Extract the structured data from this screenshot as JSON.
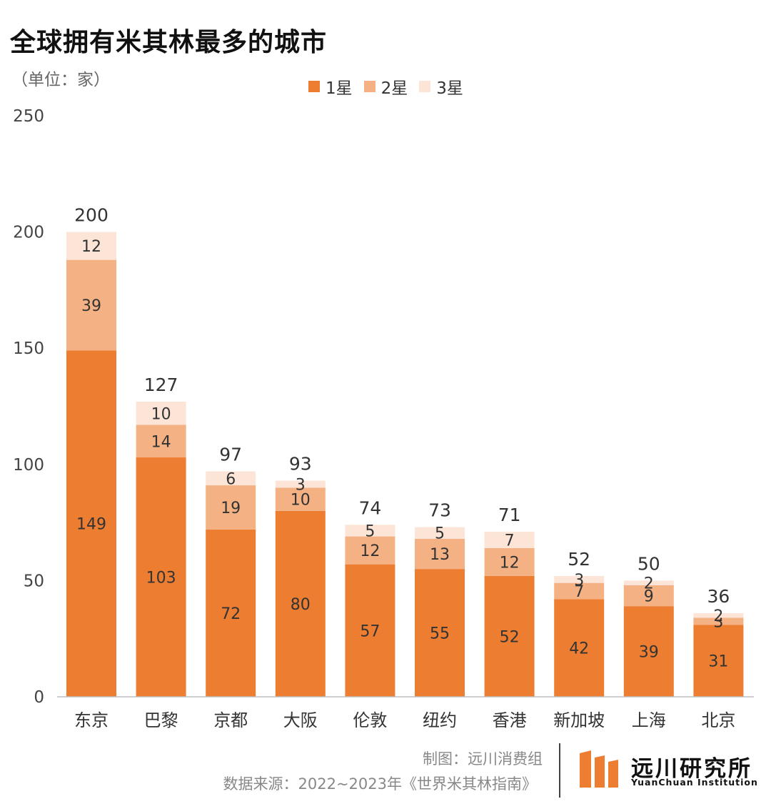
{
  "title": "全球拥有米其林最多的城市",
  "unit_label": "（单位：家）",
  "footer": {
    "credit": "制图：远川消费组",
    "source": "数据来源：2022~2023年《世界米其林指南》"
  },
  "logo": {
    "name": "远川研究所",
    "subtitle": "YuanChuan Institution"
  },
  "colors": {
    "star1": "#ED7D31",
    "star2": "#F4B183",
    "star3": "#FCE4D6",
    "axis": "#BFBFBF",
    "text": "#333333"
  },
  "chart_data": {
    "type": "bar",
    "stacked": true,
    "categories": [
      "东京",
      "巴黎",
      "京都",
      "大阪",
      "伦敦",
      "纽约",
      "香港",
      "新加坡",
      "上海",
      "北京"
    ],
    "series": [
      {
        "name": "1星",
        "values": [
          149,
          103,
          72,
          80,
          57,
          55,
          52,
          42,
          39,
          31
        ]
      },
      {
        "name": "2星",
        "values": [
          39,
          14,
          19,
          10,
          12,
          13,
          12,
          7,
          9,
          3
        ]
      },
      {
        "name": "3星",
        "values": [
          12,
          10,
          6,
          3,
          5,
          5,
          7,
          3,
          2,
          2
        ]
      }
    ],
    "totals": [
      200,
      127,
      97,
      93,
      74,
      73,
      71,
      52,
      50,
      36
    ],
    "yticks": [
      0,
      50,
      100,
      150,
      200,
      250
    ],
    "ylim": [
      0,
      250
    ],
    "grid": false,
    "legend_position": "top-center"
  }
}
